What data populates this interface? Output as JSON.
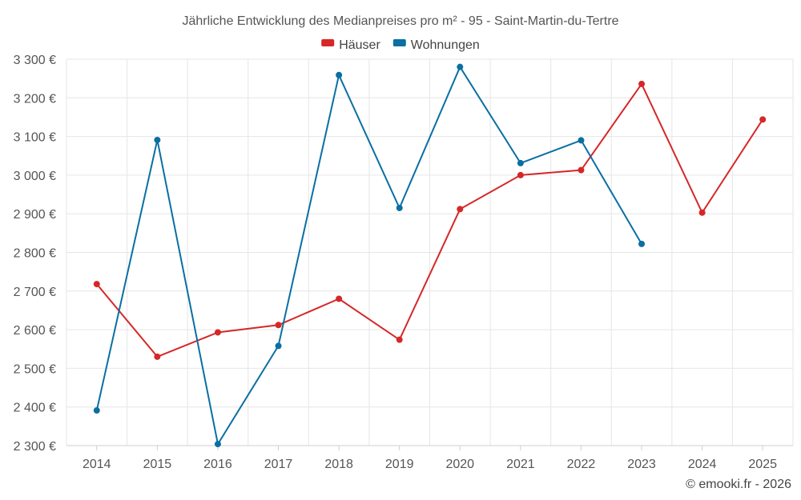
{
  "chart_data": {
    "type": "line",
    "title": "Jährliche Entwicklung des Medianpreises pro m² - 95 - Saint-Martin-du-Tertre",
    "categories": [
      "2014",
      "2015",
      "2016",
      "2017",
      "2018",
      "2019",
      "2020",
      "2021",
      "2022",
      "2023",
      "2024",
      "2025"
    ],
    "series": [
      {
        "name": "Häuser",
        "color": "#d62728",
        "values": [
          2718,
          2530,
          2593,
          2612,
          2680,
          2574,
          2912,
          3000,
          3013,
          3236,
          2903,
          3144
        ]
      },
      {
        "name": "Wohnungen",
        "color": "#0a6fa3",
        "values": [
          2391,
          3091,
          2304,
          2558,
          3259,
          2915,
          3280,
          3031,
          3090,
          2822,
          null,
          null
        ]
      }
    ],
    "ylim": [
      2300,
      3300
    ],
    "yticks": [
      2300,
      2400,
      2500,
      2600,
      2700,
      2800,
      2900,
      3000,
      3100,
      3200,
      3300
    ],
    "ytick_labels": [
      "2 300 €",
      "2 400 €",
      "2 500 €",
      "2 600 €",
      "2 700 €",
      "2 800 €",
      "2 900 €",
      "3 000 €",
      "3 100 €",
      "3 200 €",
      "3 300 €"
    ],
    "grid": true,
    "legend_position": "top-center",
    "credit": "© emooki.fr - 2026"
  }
}
